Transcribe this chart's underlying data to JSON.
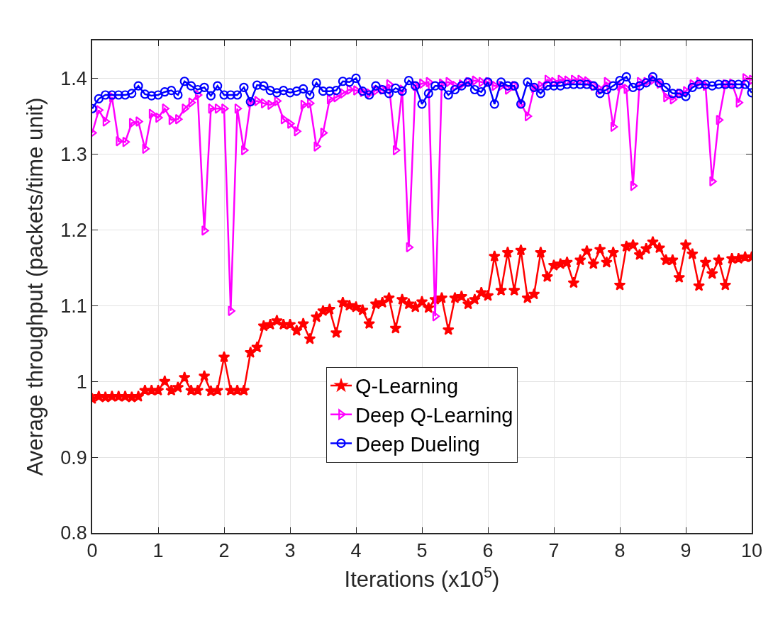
{
  "chart_data": {
    "type": "line",
    "xlabel": "Iterations (x10$^{5}$)",
    "ylabel": "Average throughput (packets/time unit)",
    "x": [
      0,
      0.1,
      0.2,
      0.3,
      0.4,
      0.5,
      0.6,
      0.7,
      0.8,
      0.9,
      1,
      1.1,
      1.2,
      1.3,
      1.4,
      1.5,
      1.6,
      1.7,
      1.8,
      1.9,
      2,
      2.1,
      2.2,
      2.3,
      2.4,
      2.5,
      2.6,
      2.7,
      2.8,
      2.9,
      3,
      3.1,
      3.2,
      3.3,
      3.4,
      3.5,
      3.6,
      3.7,
      3.8,
      3.9,
      4,
      4.1,
      4.2,
      4.3,
      4.4,
      4.5,
      4.6,
      4.7,
      4.8,
      4.9,
      5,
      5.1,
      5.2,
      5.3,
      5.4,
      5.5,
      5.6,
      5.7,
      5.8,
      5.9,
      6,
      6.1,
      6.2,
      6.3,
      6.4,
      6.5,
      6.6,
      6.7,
      6.8,
      6.9,
      7,
      7.1,
      7.2,
      7.3,
      7.4,
      7.5,
      7.6,
      7.7,
      7.8,
      7.9,
      8,
      8.1,
      8.2,
      8.3,
      8.4,
      8.5,
      8.6,
      8.7,
      8.8,
      8.9,
      9,
      9.1,
      9.2,
      9.3,
      9.4,
      9.5,
      9.6,
      9.7,
      9.8,
      9.9,
      10
    ],
    "series": [
      {
        "name": "Q-Learning",
        "color": "#ff0000",
        "marker": "star",
        "values": [
          0.977,
          0.98,
          0.979,
          0.98,
          0.98,
          0.98,
          0.979,
          0.98,
          0.988,
          0.988,
          0.988,
          1.0,
          0.988,
          0.992,
          1.005,
          0.988,
          0.988,
          1.007,
          0.987,
          0.988,
          1.032,
          0.988,
          0.988,
          0.988,
          1.038,
          1.045,
          1.073,
          1.075,
          1.08,
          1.075,
          1.075,
          1.067,
          1.076,
          1.056,
          1.085,
          1.093,
          1.095,
          1.064,
          1.104,
          1.1,
          1.098,
          1.094,
          1.076,
          1.102,
          1.104,
          1.11,
          1.07,
          1.108,
          1.102,
          1.098,
          1.105,
          1.097,
          1.108,
          1.11,
          1.068,
          1.11,
          1.112,
          1.102,
          1.108,
          1.117,
          1.113,
          1.165,
          1.12,
          1.17,
          1.12,
          1.173,
          1.11,
          1.115,
          1.17,
          1.138,
          1.153,
          1.155,
          1.157,
          1.13,
          1.16,
          1.172,
          1.155,
          1.174,
          1.157,
          1.17,
          1.127,
          1.178,
          1.18,
          1.167,
          1.175,
          1.184,
          1.176,
          1.16,
          1.16,
          1.137,
          1.18,
          1.168,
          1.126,
          1.157,
          1.142,
          1.16,
          1.127,
          1.162,
          1.162,
          1.164,
          1.164
        ]
      },
      {
        "name": "Deep Q-Learning",
        "color": "#ff00ff",
        "marker": "triangle",
        "values": [
          1.328,
          1.358,
          1.343,
          1.375,
          1.317,
          1.316,
          1.341,
          1.343,
          1.307,
          1.353,
          1.348,
          1.36,
          1.345,
          1.346,
          1.36,
          1.368,
          1.378,
          1.199,
          1.36,
          1.36,
          1.36,
          1.093,
          1.36,
          1.305,
          1.368,
          1.37,
          1.367,
          1.365,
          1.37,
          1.346,
          1.34,
          1.33,
          1.365,
          1.367,
          1.31,
          1.328,
          1.372,
          1.375,
          1.38,
          1.385,
          1.384,
          1.382,
          1.38,
          1.384,
          1.385,
          1.392,
          1.305,
          1.385,
          1.177,
          1.39,
          1.393,
          1.395,
          1.086,
          1.393,
          1.395,
          1.39,
          1.392,
          1.395,
          1.397,
          1.395,
          1.395,
          1.39,
          1.39,
          1.385,
          1.39,
          1.367,
          1.35,
          1.387,
          1.39,
          1.398,
          1.395,
          1.398,
          1.397,
          1.398,
          1.398,
          1.396,
          1.39,
          1.385,
          1.395,
          1.336,
          1.39,
          1.386,
          1.258,
          1.395,
          1.395,
          1.398,
          1.393,
          1.375,
          1.372,
          1.38,
          1.383,
          1.392,
          1.395,
          1.39,
          1.264,
          1.345,
          1.392,
          1.393,
          1.368,
          1.4,
          1.398
        ]
      },
      {
        "name": "Deep Dueling",
        "color": "#0000ff",
        "marker": "circle",
        "values": [
          1.36,
          1.373,
          1.378,
          1.378,
          1.378,
          1.378,
          1.38,
          1.39,
          1.379,
          1.377,
          1.378,
          1.382,
          1.384,
          1.378,
          1.396,
          1.39,
          1.385,
          1.388,
          1.377,
          1.39,
          1.378,
          1.378,
          1.378,
          1.388,
          1.369,
          1.391,
          1.39,
          1.384,
          1.381,
          1.384,
          1.381,
          1.383,
          1.386,
          1.378,
          1.394,
          1.383,
          1.383,
          1.384,
          1.396,
          1.395,
          1.4,
          1.383,
          1.378,
          1.39,
          1.385,
          1.38,
          1.387,
          1.383,
          1.397,
          1.39,
          1.366,
          1.38,
          1.39,
          1.39,
          1.378,
          1.385,
          1.39,
          1.395,
          1.385,
          1.382,
          1.395,
          1.366,
          1.395,
          1.39,
          1.39,
          1.366,
          1.395,
          1.388,
          1.38,
          1.39,
          1.39,
          1.39,
          1.392,
          1.392,
          1.392,
          1.392,
          1.39,
          1.38,
          1.385,
          1.39,
          1.397,
          1.402,
          1.388,
          1.39,
          1.394,
          1.402,
          1.394,
          1.388,
          1.38,
          1.38,
          1.376,
          1.388,
          1.392,
          1.392,
          1.39,
          1.392,
          1.392,
          1.392,
          1.392,
          1.392,
          1.381
        ]
      }
    ],
    "xlim": [
      0,
      10
    ],
    "xticks": [
      0,
      1,
      2,
      3,
      4,
      5,
      6,
      7,
      8,
      9,
      10
    ],
    "ylim": [
      0.8,
      1.45
    ],
    "yticks": [
      0.8,
      0.9,
      1,
      1.1,
      1.2,
      1.3,
      1.4
    ],
    "grid": true,
    "legend": "bottom",
    "line_style": "solid"
  }
}
